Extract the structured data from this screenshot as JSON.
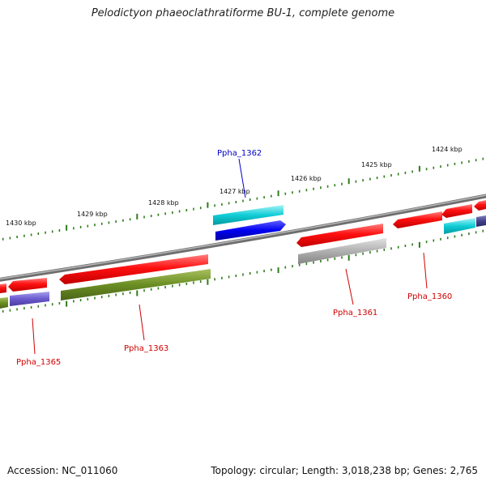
{
  "title": "Pelodictyon phaeoclathratiforme BU-1, complete genome",
  "footer": {
    "accession": "Accession: NC_011060",
    "summary": "Topology: circular; Length: 3,018,238 bp; Genes: 2,765"
  },
  "ruler": {
    "ticks": [
      "1430 kbp",
      "1429 kbp",
      "1428 kbp",
      "1427 kbp",
      "1426 kbp",
      "1425 kbp",
      "1424 kbp"
    ]
  },
  "genes": [
    {
      "name": "Ppha_1365",
      "color": "#d00000"
    },
    {
      "name": "Ppha_1363",
      "color": "#d00000"
    },
    {
      "name": "Ppha_1362",
      "color": "#0000c8"
    },
    {
      "name": "Ppha_1361",
      "color": "#d00000"
    },
    {
      "name": "Ppha_1360",
      "color": "#d00000"
    }
  ],
  "colors": {
    "backbone": "#808080",
    "tick": "#2e7d1a",
    "red": "#ff0000",
    "blue": "#0000ee",
    "cyan": "#00c8d0",
    "olive": "#6b8e23",
    "purple": "#6a5acd",
    "gray": "#a9a9a9"
  }
}
